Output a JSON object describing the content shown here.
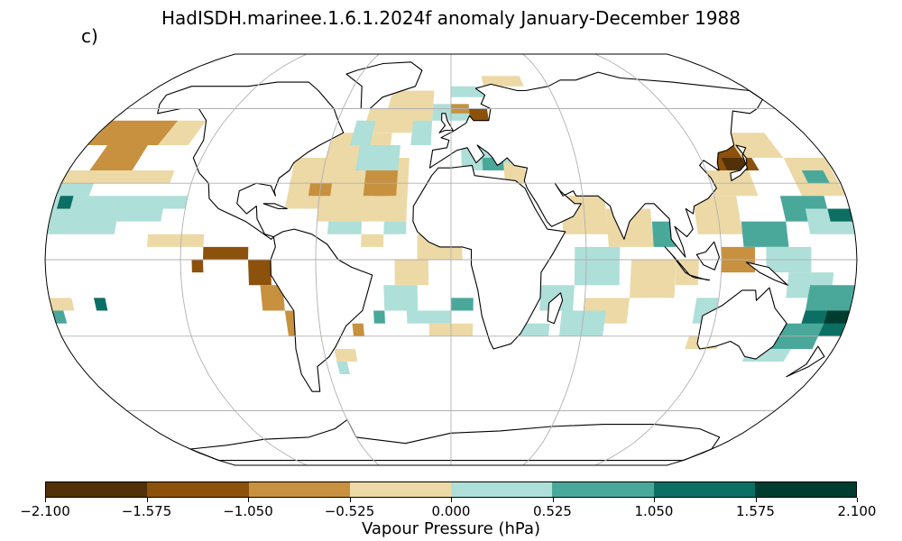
{
  "title": "HadISDH.marinee.1.6.1.2024f anomaly January-December 1988",
  "panel_label": "c)",
  "colorbar": {
    "label": "Vapour Pressure (hPa)",
    "ticks": [
      "−2.100",
      "−1.575",
      "−1.050",
      "−0.525",
      "0.000",
      "0.525",
      "1.050",
      "1.575",
      "2.100"
    ],
    "colors": [
      "#523008",
      "#8c510a",
      "#c7913f",
      "#edd9a6",
      "#aedfd8",
      "#4aa89b",
      "#0b6f63",
      "#003c30"
    ]
  },
  "map": {
    "projection": "Robinson",
    "gridlines": true,
    "coastlines": true,
    "icon": "world-map-anomaly-grid"
  }
}
